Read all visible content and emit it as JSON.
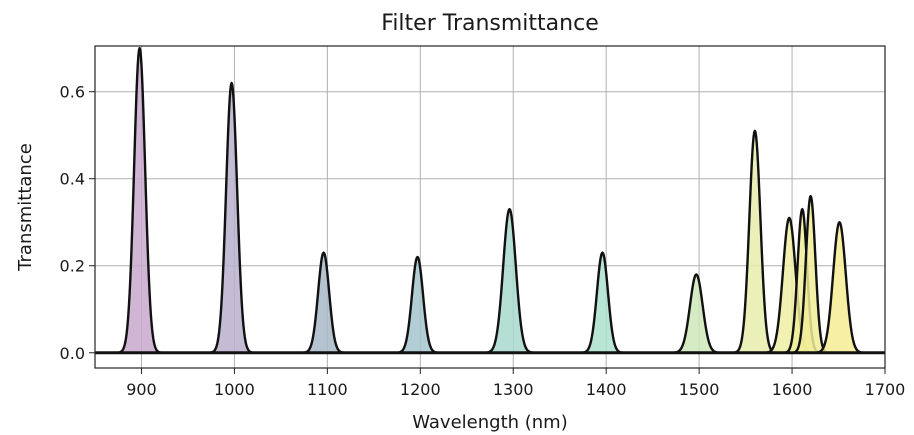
{
  "chart_data": {
    "type": "area",
    "title": "Filter Transmittance",
    "xlabel": "Wavelength (nm)",
    "ylabel": "Transmittance",
    "xlim": [
      850,
      1700
    ],
    "ylim": [
      -0.035,
      0.705
    ],
    "grid": true,
    "xticks": [
      900,
      1000,
      1100,
      1200,
      1300,
      1400,
      1500,
      1600,
      1700
    ],
    "yticks": [
      0.0,
      0.2,
      0.4,
      0.6
    ],
    "ytick_labels": [
      "0.0",
      "0.2",
      "0.4",
      "0.6"
    ],
    "xtick_labels": [
      "900",
      "1000",
      "1100",
      "1200",
      "1300",
      "1400",
      "1500",
      "1600",
      "1700"
    ],
    "series": [
      {
        "center": 898,
        "peak": 0.7,
        "fwhm": 14,
        "color": "#c8a8cc"
      },
      {
        "center": 997,
        "peak": 0.62,
        "fwhm": 14,
        "color": "#b8b0cc"
      },
      {
        "center": 1096,
        "peak": 0.23,
        "fwhm": 14,
        "color": "#a8b8c8"
      },
      {
        "center": 1197,
        "peak": 0.22,
        "fwhm": 14,
        "color": "#a4c4cc"
      },
      {
        "center": 1296,
        "peak": 0.33,
        "fwhm": 16,
        "color": "#a8d8cc"
      },
      {
        "center": 1396,
        "peak": 0.23,
        "fwhm": 14,
        "color": "#ace0cc"
      },
      {
        "center": 1497,
        "peak": 0.18,
        "fwhm": 16,
        "color": "#cce8b8"
      },
      {
        "center": 1560,
        "peak": 0.51,
        "fwhm": 14,
        "color": "#e8ecac"
      },
      {
        "center": 1597,
        "peak": 0.31,
        "fwhm": 16,
        "color": "#eef0a4"
      },
      {
        "center": 1611,
        "peak": 0.33,
        "fwhm": 12,
        "color": "#eeee9c"
      },
      {
        "center": 1620,
        "peak": 0.36,
        "fwhm": 12,
        "color": "#f0ec98"
      },
      {
        "center": 1651,
        "peak": 0.3,
        "fwhm": 16,
        "color": "#f4ec94"
      }
    ]
  }
}
